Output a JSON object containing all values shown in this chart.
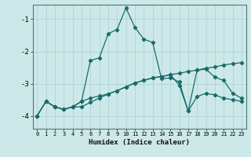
{
  "xlabel": "Humidex (Indice chaleur)",
  "background_color": "#cde8e8",
  "grid_color": "#a8d0d0",
  "line_color": "#1a6b6b",
  "xlim": [
    -0.5,
    23.5
  ],
  "ylim": [
    -4.4,
    -0.55
  ],
  "yticks": [
    -4,
    -3,
    -2,
    -1
  ],
  "xticks": [
    0,
    1,
    2,
    3,
    4,
    5,
    6,
    7,
    8,
    9,
    10,
    11,
    12,
    13,
    14,
    15,
    16,
    17,
    18,
    19,
    20,
    21,
    22,
    23
  ],
  "line1_x": [
    0,
    1,
    2,
    3,
    4,
    5,
    6,
    7,
    8,
    9,
    10,
    11,
    12,
    13,
    14,
    15,
    16,
    17,
    18,
    19,
    20,
    21,
    22,
    23
  ],
  "line1_y": [
    -4.0,
    -3.55,
    -3.72,
    -3.8,
    -3.72,
    -3.55,
    -3.45,
    -3.38,
    -3.32,
    -3.22,
    -3.1,
    -2.98,
    -2.9,
    -2.82,
    -2.78,
    -2.72,
    -2.68,
    -2.62,
    -2.58,
    -2.52,
    -2.48,
    -2.42,
    -2.38,
    -2.35
  ],
  "line2_x": [
    0,
    1,
    2,
    3,
    4,
    5,
    6,
    7,
    8,
    9,
    10,
    11,
    12,
    13,
    14,
    15,
    16,
    17,
    18,
    19,
    20,
    21,
    22,
    23
  ],
  "line2_y": [
    -4.0,
    -3.55,
    -3.72,
    -3.8,
    -3.72,
    -3.55,
    -2.28,
    -2.2,
    -1.45,
    -1.32,
    -0.65,
    -1.25,
    -1.62,
    -1.72,
    -2.85,
    -2.82,
    -2.95,
    -3.85,
    -2.58,
    -2.55,
    -2.8,
    -2.9,
    -3.3,
    -3.45
  ],
  "line3_x": [
    0,
    1,
    2,
    3,
    4,
    5,
    6,
    7,
    8,
    9,
    10,
    11,
    12,
    13,
    14,
    15,
    16,
    17,
    18,
    19,
    20,
    21,
    22,
    23
  ],
  "line3_y": [
    -4.0,
    -3.55,
    -3.72,
    -3.8,
    -3.72,
    -3.72,
    -3.58,
    -3.45,
    -3.32,
    -3.22,
    -3.1,
    -2.98,
    -2.9,
    -2.82,
    -2.78,
    -2.72,
    -3.05,
    -3.85,
    -3.4,
    -3.3,
    -3.35,
    -3.45,
    -3.5,
    -3.55
  ]
}
